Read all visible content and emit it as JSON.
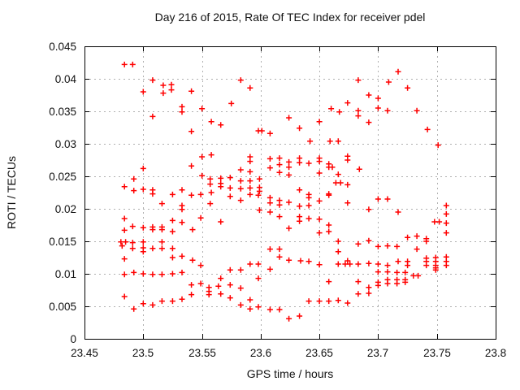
{
  "chart_data": {
    "type": "scatter",
    "title": "Day 216 of 2015, Rate Of TEC Index for receiver pdel",
    "xlabel": "GPS time / hours",
    "ylabel": "ROTI / TECUs",
    "xlim": [
      23.45,
      23.8
    ],
    "ylim": [
      0,
      0.045
    ],
    "xtick_labels": [
      "23.45",
      "23.5",
      "23.55",
      "23.6",
      "23.65",
      "23.7",
      "23.75",
      "23.8"
    ],
    "ytick_labels": [
      "0",
      "0.005",
      "0.01",
      "0.015",
      "0.02",
      "0.025",
      "0.03",
      "0.035",
      "0.04",
      "0.045"
    ],
    "grid": "dashed",
    "legend": "none",
    "marker_shape": "plus",
    "marker_color": "#ff0000",
    "points": [
      [
        23.484,
        0.0422
      ],
      [
        23.491,
        0.0422
      ],
      [
        23.508,
        0.0398
      ],
      [
        23.5,
        0.038
      ],
      [
        23.517,
        0.039
      ],
      [
        23.517,
        0.0378
      ],
      [
        23.524,
        0.0391
      ],
      [
        23.524,
        0.0383
      ],
      [
        23.541,
        0.0381
      ],
      [
        23.533,
        0.0357
      ],
      [
        23.533,
        0.0349
      ],
      [
        23.55,
        0.0354
      ],
      [
        23.508,
        0.0342
      ],
      [
        23.558,
        0.0334
      ],
      [
        23.566,
        0.0329
      ],
      [
        23.541,
        0.0319
      ],
      [
        23.55,
        0.028
      ],
      [
        23.558,
        0.0283
      ],
      [
        23.5,
        0.0262
      ],
      [
        23.541,
        0.0266
      ],
      [
        23.55,
        0.0251
      ],
      [
        23.492,
        0.0246
      ],
      [
        23.484,
        0.0234
      ],
      [
        23.492,
        0.0228
      ],
      [
        23.5,
        0.023
      ],
      [
        23.508,
        0.0229
      ],
      [
        23.533,
        0.0229
      ],
      [
        23.557,
        0.0246
      ],
      [
        23.557,
        0.0238
      ],
      [
        23.566,
        0.0247
      ],
      [
        23.566,
        0.0239
      ],
      [
        23.566,
        0.0234
      ],
      [
        23.508,
        0.0223
      ],
      [
        23.525,
        0.0222
      ],
      [
        23.541,
        0.0221
      ],
      [
        23.549,
        0.0222
      ],
      [
        23.558,
        0.0225
      ],
      [
        23.516,
        0.0208
      ],
      [
        23.533,
        0.0205
      ],
      [
        23.533,
        0.0199
      ],
      [
        23.557,
        0.0208
      ],
      [
        23.484,
        0.0185
      ],
      [
        23.484,
        0.0167
      ],
      [
        23.491,
        0.0173
      ],
      [
        23.5,
        0.0171
      ],
      [
        23.508,
        0.0172
      ],
      [
        23.508,
        0.0168
      ],
      [
        23.516,
        0.0172
      ],
      [
        23.516,
        0.0168
      ],
      [
        23.525,
        0.0182
      ],
      [
        23.525,
        0.0165
      ],
      [
        23.533,
        0.0179
      ],
      [
        23.542,
        0.0168
      ],
      [
        23.549,
        0.0186
      ],
      [
        23.566,
        0.018
      ],
      [
        23.481,
        0.0149
      ],
      [
        23.485,
        0.0149
      ],
      [
        23.482,
        0.0143
      ],
      [
        23.491,
        0.0148
      ],
      [
        23.491,
        0.0139
      ],
      [
        23.5,
        0.0149
      ],
      [
        23.5,
        0.014
      ],
      [
        23.5,
        0.0134
      ],
      [
        23.508,
        0.0139
      ],
      [
        23.516,
        0.0149
      ],
      [
        23.516,
        0.0139
      ],
      [
        23.525,
        0.0139
      ],
      [
        23.525,
        0.0125
      ],
      [
        23.533,
        0.0127
      ],
      [
        23.484,
        0.0123
      ],
      [
        23.542,
        0.0121
      ],
      [
        23.549,
        0.0113
      ],
      [
        23.484,
        0.0099
      ],
      [
        23.492,
        0.0102
      ],
      [
        23.5,
        0.01
      ],
      [
        23.508,
        0.0099
      ],
      [
        23.516,
        0.0099
      ],
      [
        23.525,
        0.01
      ],
      [
        23.533,
        0.0102
      ],
      [
        23.566,
        0.0093
      ],
      [
        23.541,
        0.0083
      ],
      [
        23.549,
        0.0085
      ],
      [
        23.556,
        0.0079
      ],
      [
        23.556,
        0.0073
      ],
      [
        23.556,
        0.0068
      ],
      [
        23.564,
        0.0081
      ],
      [
        23.566,
        0.0069
      ],
      [
        23.484,
        0.0065
      ],
      [
        23.541,
        0.0068
      ],
      [
        23.516,
        0.0058
      ],
      [
        23.525,
        0.0058
      ],
      [
        23.533,
        0.0061
      ],
      [
        23.5,
        0.0054
      ],
      [
        23.508,
        0.0052
      ],
      [
        23.492,
        0.0046
      ],
      [
        23.583,
        0.0398
      ],
      [
        23.591,
        0.0386
      ],
      [
        23.575,
        0.0362
      ],
      [
        23.683,
        0.0398
      ],
      [
        23.674,
        0.0363
      ],
      [
        23.66,
        0.0354
      ],
      [
        23.667,
        0.0349
      ],
      [
        23.683,
        0.0351
      ],
      [
        23.683,
        0.0343
      ],
      [
        23.624,
        0.034
      ],
      [
        23.65,
        0.0334
      ],
      [
        23.633,
        0.0324
      ],
      [
        23.598,
        0.032
      ],
      [
        23.601,
        0.032
      ],
      [
        23.608,
        0.0316
      ],
      [
        23.642,
        0.0304
      ],
      [
        23.659,
        0.0304
      ],
      [
        23.666,
        0.0304
      ],
      [
        23.591,
        0.028
      ],
      [
        23.591,
        0.0273
      ],
      [
        23.608,
        0.0277
      ],
      [
        23.608,
        0.0263
      ],
      [
        23.616,
        0.0278
      ],
      [
        23.616,
        0.0268
      ],
      [
        23.616,
        0.0256
      ],
      [
        23.624,
        0.0272
      ],
      [
        23.624,
        0.0264
      ],
      [
        23.624,
        0.0252
      ],
      [
        23.633,
        0.0278
      ],
      [
        23.633,
        0.0271
      ],
      [
        23.641,
        0.027
      ],
      [
        23.65,
        0.0278
      ],
      [
        23.65,
        0.0273
      ],
      [
        23.65,
        0.0255
      ],
      [
        23.658,
        0.0269
      ],
      [
        23.658,
        0.0264
      ],
      [
        23.661,
        0.0264
      ],
      [
        23.674,
        0.0281
      ],
      [
        23.674,
        0.0275
      ],
      [
        23.666,
        0.0253
      ],
      [
        23.684,
        0.0261
      ],
      [
        23.583,
        0.026
      ],
      [
        23.591,
        0.0257
      ],
      [
        23.574,
        0.0248
      ],
      [
        23.583,
        0.0243
      ],
      [
        23.591,
        0.0243
      ],
      [
        23.599,
        0.0246
      ],
      [
        23.574,
        0.0232
      ],
      [
        23.583,
        0.0231
      ],
      [
        23.591,
        0.0232
      ],
      [
        23.599,
        0.0233
      ],
      [
        23.664,
        0.024
      ],
      [
        23.668,
        0.024
      ],
      [
        23.674,
        0.0237
      ],
      [
        23.633,
        0.0229
      ],
      [
        23.599,
        0.0227
      ],
      [
        23.658,
        0.0223
      ],
      [
        23.574,
        0.0219
      ],
      [
        23.583,
        0.0213
      ],
      [
        23.591,
        0.0222
      ],
      [
        23.598,
        0.0221
      ],
      [
        23.608,
        0.0217
      ],
      [
        23.608,
        0.0209
      ],
      [
        23.616,
        0.0213
      ],
      [
        23.616,
        0.0206
      ],
      [
        23.624,
        0.021
      ],
      [
        23.633,
        0.0204
      ],
      [
        23.641,
        0.0222
      ],
      [
        23.641,
        0.0217
      ],
      [
        23.65,
        0.0212
      ],
      [
        23.658,
        0.0221
      ],
      [
        23.641,
        0.0205
      ],
      [
        23.674,
        0.0209
      ],
      [
        23.599,
        0.0198
      ],
      [
        23.608,
        0.0195
      ],
      [
        23.616,
        0.0188
      ],
      [
        23.633,
        0.0188
      ],
      [
        23.633,
        0.0181
      ],
      [
        23.641,
        0.0185
      ],
      [
        23.65,
        0.0184
      ],
      [
        23.658,
        0.0175
      ],
      [
        23.624,
        0.017
      ],
      [
        23.65,
        0.0163
      ],
      [
        23.658,
        0.0165
      ],
      [
        23.666,
        0.015
      ],
      [
        23.683,
        0.0146
      ],
      [
        23.666,
        0.0134
      ],
      [
        23.608,
        0.0138
      ],
      [
        23.616,
        0.0138
      ],
      [
        23.616,
        0.0126
      ],
      [
        23.624,
        0.0121
      ],
      [
        23.634,
        0.012
      ],
      [
        23.641,
        0.0119
      ],
      [
        23.65,
        0.0114
      ],
      [
        23.666,
        0.0115
      ],
      [
        23.674,
        0.012
      ],
      [
        23.672,
        0.0115
      ],
      [
        23.676,
        0.0115
      ],
      [
        23.683,
        0.0115
      ],
      [
        23.591,
        0.0115
      ],
      [
        23.598,
        0.0115
      ],
      [
        23.574,
        0.0106
      ],
      [
        23.583,
        0.0106
      ],
      [
        23.608,
        0.0107
      ],
      [
        23.598,
        0.0093
      ],
      [
        23.574,
        0.0083
      ],
      [
        23.583,
        0.0078
      ],
      [
        23.658,
        0.0088
      ],
      [
        23.683,
        0.0088
      ],
      [
        23.683,
        0.0069
      ],
      [
        23.574,
        0.0063
      ],
      [
        23.591,
        0.006
      ],
      [
        23.641,
        0.0058
      ],
      [
        23.65,
        0.0058
      ],
      [
        23.658,
        0.0058
      ],
      [
        23.666,
        0.0059
      ],
      [
        23.674,
        0.0055
      ],
      [
        23.583,
        0.0052
      ],
      [
        23.591,
        0.0046
      ],
      [
        23.598,
        0.0049
      ],
      [
        23.608,
        0.0045
      ],
      [
        23.616,
        0.0045
      ],
      [
        23.624,
        0.0031
      ],
      [
        23.633,
        0.0035
      ],
      [
        23.717,
        0.0411
      ],
      [
        23.709,
        0.0395
      ],
      [
        23.725,
        0.0386
      ],
      [
        23.692,
        0.0375
      ],
      [
        23.7,
        0.037
      ],
      [
        23.7,
        0.0355
      ],
      [
        23.708,
        0.0351
      ],
      [
        23.733,
        0.0351
      ],
      [
        23.692,
        0.0333
      ],
      [
        23.742,
        0.0322
      ],
      [
        23.751,
        0.0298
      ],
      [
        23.7,
        0.0215
      ],
      [
        23.708,
        0.0215
      ],
      [
        23.692,
        0.0199
      ],
      [
        23.717,
        0.0195
      ],
      [
        23.758,
        0.0205
      ],
      [
        23.758,
        0.0192
      ],
      [
        23.748,
        0.018
      ],
      [
        23.752,
        0.018
      ],
      [
        23.758,
        0.0178
      ],
      [
        23.758,
        0.0163
      ],
      [
        23.725,
        0.0156
      ],
      [
        23.733,
        0.0158
      ],
      [
        23.741,
        0.0154
      ],
      [
        23.741,
        0.015
      ],
      [
        23.692,
        0.0151
      ],
      [
        23.7,
        0.0142
      ],
      [
        23.708,
        0.0143
      ],
      [
        23.716,
        0.0142
      ],
      [
        23.733,
        0.0138
      ],
      [
        23.717,
        0.0119
      ],
      [
        23.725,
        0.0119
      ],
      [
        23.725,
        0.0113
      ],
      [
        23.741,
        0.0124
      ],
      [
        23.741,
        0.0119
      ],
      [
        23.741,
        0.0113
      ],
      [
        23.749,
        0.0125
      ],
      [
        23.749,
        0.0119
      ],
      [
        23.749,
        0.0113
      ],
      [
        23.749,
        0.0109
      ],
      [
        23.749,
        0.0106
      ],
      [
        23.758,
        0.0126
      ],
      [
        23.758,
        0.0119
      ],
      [
        23.758,
        0.0113
      ],
      [
        23.692,
        0.0116
      ],
      [
        23.7,
        0.0115
      ],
      [
        23.708,
        0.0113
      ],
      [
        23.7,
        0.0103
      ],
      [
        23.708,
        0.0103
      ],
      [
        23.716,
        0.0102
      ],
      [
        23.723,
        0.0102
      ],
      [
        23.73,
        0.0097
      ],
      [
        23.734,
        0.0097
      ],
      [
        23.692,
        0.0079
      ],
      [
        23.7,
        0.0087
      ],
      [
        23.7,
        0.0082
      ],
      [
        23.708,
        0.0091
      ],
      [
        23.708,
        0.0085
      ],
      [
        23.716,
        0.0091
      ],
      [
        23.716,
        0.0085
      ],
      [
        23.723,
        0.0091
      ],
      [
        23.723,
        0.0087
      ],
      [
        23.692,
        0.007
      ]
    ]
  }
}
